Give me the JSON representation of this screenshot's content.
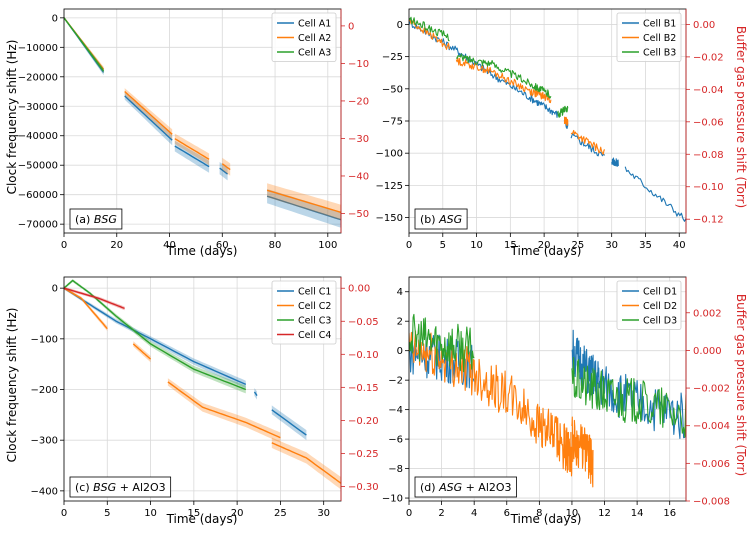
{
  "figure": {
    "ylabel_left": "Clock frequency shift (Hz)",
    "ylabel_right": "Buffer gas pressure shift (Torr)",
    "xlabel": "Time (days)"
  },
  "chart_data": [
    {
      "type": "line",
      "panel_label": "(a) BSG",
      "xlabel": "Time (days)",
      "ylabel": "Clock frequency shift (Hz)",
      "y2label": "",
      "xlim": [
        0,
        105
      ],
      "ylim": [
        -73000,
        3000
      ],
      "y2lim": [
        -55.2,
        4.5
      ],
      "xticks": [
        0,
        20,
        40,
        60,
        80,
        100
      ],
      "yticks": [
        0,
        -10000,
        -20000,
        -30000,
        -40000,
        -50000,
        -60000,
        -70000
      ],
      "y2ticks": [
        0,
        -10,
        -20,
        -30,
        -40,
        -50
      ],
      "series": [
        {
          "name": "Cell A1",
          "color": "#1f77b4",
          "segments": [
            [
              [
                0,
                0
              ],
              [
                15,
                -18500
              ]
            ],
            [
              [
                23,
                -26500
              ],
              [
                41,
                -41500
              ]
            ],
            [
              [
                42,
                -43500
              ],
              [
                55,
                -50500
              ]
            ],
            [
              [
                59,
                -51000
              ],
              [
                62,
                -53000
              ]
            ],
            [
              [
                77,
                -60500
              ],
              [
                105,
                -68500
              ]
            ]
          ]
        },
        {
          "name": "Cell A2",
          "color": "#ff7f0e",
          "segments": [
            [
              [
                0,
                0
              ],
              [
                15,
                -17500
              ]
            ],
            [
              [
                23,
                -25000
              ],
              [
                41,
                -39500
              ]
            ],
            [
              [
                42,
                -41000
              ],
              [
                55,
                -48000
              ]
            ],
            [
              [
                60,
                -49500
              ],
              [
                63,
                -51500
              ]
            ],
            [
              [
                77,
                -58500
              ],
              [
                105,
                -66000
              ]
            ]
          ]
        },
        {
          "name": "Cell A3",
          "color": "#2ca02c",
          "segments": [
            [
              [
                0,
                0
              ],
              [
                15,
                -18000
              ]
            ]
          ]
        }
      ]
    },
    {
      "type": "line",
      "panel_label": "(b) ASG",
      "xlabel": "Time (days)",
      "ylabel": "",
      "y2label": "Buffer gas pressure shift (Torr)",
      "xlim": [
        0,
        41
      ],
      "ylim": [
        -162,
        12
      ],
      "y2lim": [
        -0.1285,
        0.0095
      ],
      "xticks": [
        0,
        5,
        10,
        15,
        20,
        25,
        30,
        35,
        40
      ],
      "yticks": [
        0,
        -25,
        -50,
        -75,
        -100,
        -125,
        -150
      ],
      "y2ticks": [
        0.0,
        -0.02,
        -0.04,
        -0.06,
        -0.08,
        -0.1,
        -0.12
      ],
      "series": [
        {
          "name": "Cell B1",
          "color": "#1f77b4",
          "segments": [
            [
              [
                0,
                2
              ],
              [
                7,
                -20
              ],
              [
                12,
                -38
              ],
              [
                18,
                -57
              ],
              [
                22,
                -70
              ]
            ],
            [
              [
                23,
                -74
              ],
              [
                23.5,
                -80
              ]
            ],
            [
              [
                24,
                -86
              ],
              [
                29,
                -103
              ]
            ],
            [
              [
                30,
                -106
              ],
              [
                31,
                -108
              ]
            ],
            [
              [
                32,
                -112
              ],
              [
                41,
                -152
              ]
            ]
          ]
        },
        {
          "name": "Cell B2",
          "color": "#ff7f0e",
          "segments": [
            [
              [
                0,
                3
              ],
              [
                6,
                -18
              ]
            ],
            [
              [
                7,
                -28
              ],
              [
                12,
                -36
              ],
              [
                18,
                -52
              ],
              [
                21,
                -58
              ]
            ],
            [
              [
                23,
                -74
              ],
              [
                23.5,
                -76
              ]
            ],
            [
              [
                24,
                -83
              ],
              [
                29,
                -100
              ]
            ]
          ]
        },
        {
          "name": "Cell B3",
          "color": "#2ca02c",
          "segments": [
            [
              [
                0,
                4
              ],
              [
                6,
                -10
              ]
            ],
            [
              [
                7,
                -25
              ],
              [
                12,
                -30
              ],
              [
                18,
                -46
              ],
              [
                21,
                -55
              ]
            ],
            [
              [
                22,
                -70
              ],
              [
                23.5,
                -65
              ]
            ]
          ]
        }
      ]
    },
    {
      "type": "line",
      "panel_label": "(c) BSG + Al2O3",
      "xlabel": "Time (days)",
      "ylabel": "Clock frequency shift (Hz)",
      "y2label": "",
      "xlim": [
        0,
        32
      ],
      "ylim": [
        -420,
        22
      ],
      "y2lim": [
        -0.322,
        0.017
      ],
      "xticks": [
        0,
        5,
        10,
        15,
        20,
        25,
        30
      ],
      "yticks": [
        0,
        -100,
        -200,
        -300,
        -400
      ],
      "y2ticks": [
        0.0,
        -0.05,
        -0.1,
        -0.15,
        -0.2,
        -0.25,
        -0.3
      ],
      "series": [
        {
          "name": "Cell C1",
          "color": "#1f77b4",
          "segments": [
            [
              [
                0,
                0
              ],
              [
                6,
                -65
              ],
              [
                10,
                -100
              ],
              [
                15,
                -145
              ],
              [
                21,
                -190
              ]
            ],
            [
              [
                22,
                -205
              ],
              [
                22.3,
                -212
              ]
            ],
            [
              [
                24,
                -240
              ],
              [
                28,
                -290
              ]
            ]
          ]
        },
        {
          "name": "Cell C2",
          "color": "#ff7f0e",
          "segments": [
            [
              [
                0,
                0
              ],
              [
                2,
                -20
              ],
              [
                5,
                -80
              ]
            ],
            [
              [
                8,
                -110
              ],
              [
                10,
                -140
              ]
            ],
            [
              [
                12,
                -185
              ],
              [
                16,
                -235
              ],
              [
                21,
                -265
              ],
              [
                25,
                -295
              ]
            ],
            [
              [
                24,
                -305
              ],
              [
                28,
                -335
              ],
              [
                32,
                -385
              ]
            ]
          ]
        },
        {
          "name": "Cell C3",
          "color": "#2ca02c",
          "segments": [
            [
              [
                0,
                0
              ],
              [
                1,
                15
              ],
              [
                3,
                -10
              ],
              [
                6,
                -55
              ],
              [
                10,
                -110
              ],
              [
                15,
                -160
              ],
              [
                21,
                -200
              ]
            ]
          ]
        },
        {
          "name": "Cell C4",
          "color": "#d62728",
          "segments": [
            [
              [
                0,
                0
              ],
              [
                4,
                -20
              ],
              [
                7,
                -40
              ]
            ]
          ]
        }
      ]
    },
    {
      "type": "line",
      "panel_label": "(d) ASG + Al2O3",
      "xlabel": "Time (days)",
      "ylabel": "",
      "y2label": "Buffer gas pressure shift (Torr)",
      "xlim": [
        0,
        17
      ],
      "ylim": [
        -10.2,
        5
      ],
      "y2lim": [
        -0.008,
        0.0039
      ],
      "xticks": [
        0,
        2,
        4,
        6,
        8,
        10,
        12,
        14,
        16
      ],
      "yticks": [
        4,
        2,
        0,
        -2,
        -4,
        -6,
        -8,
        -10
      ],
      "y2ticks": [
        0.002,
        0.0,
        -0.002,
        -0.004,
        -0.006,
        -0.008
      ],
      "series": [
        {
          "name": "Cell D1",
          "color": "#1f77b4",
          "segments": [
            [
              [
                0,
                0
              ],
              [
                2,
                -0.5
              ],
              [
                4,
                -1
              ]
            ],
            [
              [
                10,
                0
              ],
              [
                11,
                -1.5
              ],
              [
                12,
                -2.5
              ],
              [
                14,
                -3.5
              ],
              [
                17,
                -4.5
              ]
            ]
          ]
        },
        {
          "name": "Cell D2",
          "color": "#ff7f0e",
          "segments": [
            [
              [
                0,
                0
              ],
              [
                2,
                -0.5
              ],
              [
                4,
                -1.5
              ],
              [
                6,
                -3
              ],
              [
                8,
                -5
              ],
              [
                9.5,
                -6.5
              ],
              [
                10,
                -7
              ]
            ],
            [
              [
                10,
                -6
              ],
              [
                11,
                -7
              ],
              [
                11.3,
                -8
              ]
            ]
          ]
        },
        {
          "name": "Cell D3",
          "color": "#2ca02c",
          "segments": [
            [
              [
                0,
                1
              ],
              [
                2,
                0.5
              ],
              [
                4,
                0
              ]
            ],
            [
              [
                10,
                -2
              ],
              [
                12,
                -3
              ],
              [
                14,
                -3.5
              ],
              [
                17,
                -4.5
              ]
            ]
          ]
        }
      ]
    }
  ]
}
